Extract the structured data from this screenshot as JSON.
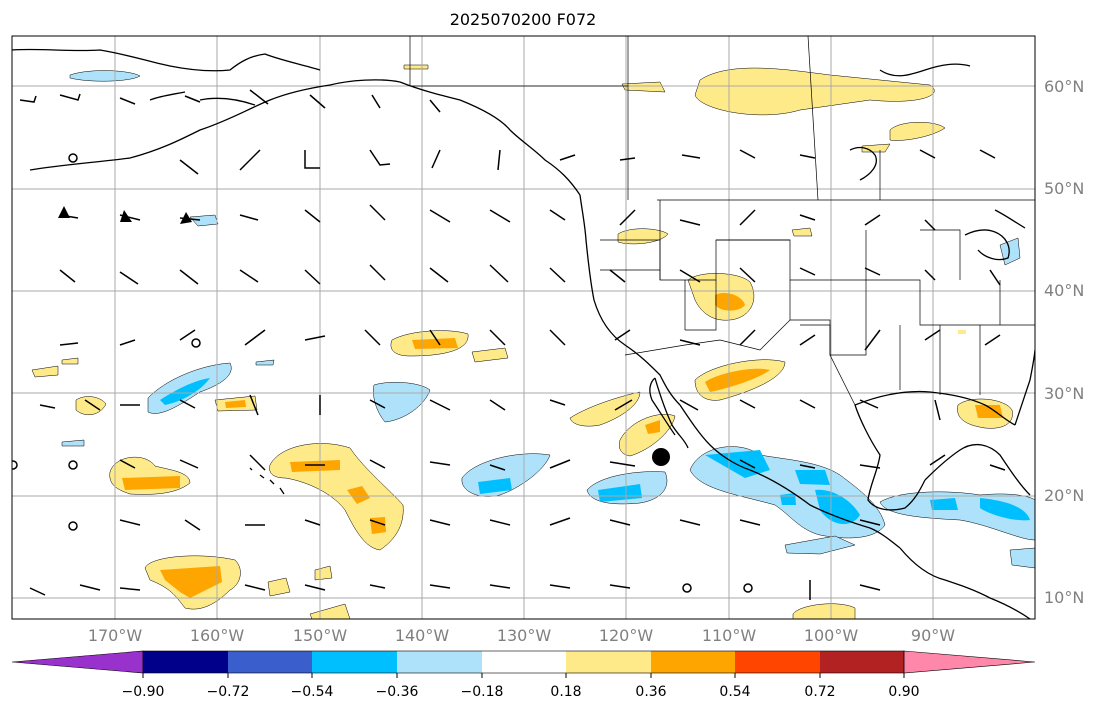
{
  "title": "2025070200 F072",
  "map": {
    "lat_labels": [
      "60°N",
      "50°N",
      "40°N",
      "30°N",
      "20°N",
      "10°N"
    ],
    "lon_labels": [
      "170°W",
      "160°W",
      "150°W",
      "140°W",
      "130°W",
      "120°W",
      "110°W",
      "100°W",
      "90°W"
    ]
  },
  "colorbar": {
    "ticks": [
      "−0.90",
      "−0.72",
      "−0.54",
      "−0.36",
      "−0.18",
      "0.18",
      "0.36",
      "0.54",
      "0.72",
      "0.90"
    ],
    "colors": [
      "#9932cc",
      "#00008b",
      "#3a5fcd",
      "#00bfff",
      "#aee2fa",
      "#ffffff",
      "#ffea8a",
      "#ffa500",
      "#ff4500",
      "#b22222",
      "#ff88aa"
    ]
  },
  "palette": {
    "light_yellow": "#ffea8a",
    "orange": "#ffa500",
    "light_blue": "#aee2fa",
    "blue": "#00bfff"
  }
}
